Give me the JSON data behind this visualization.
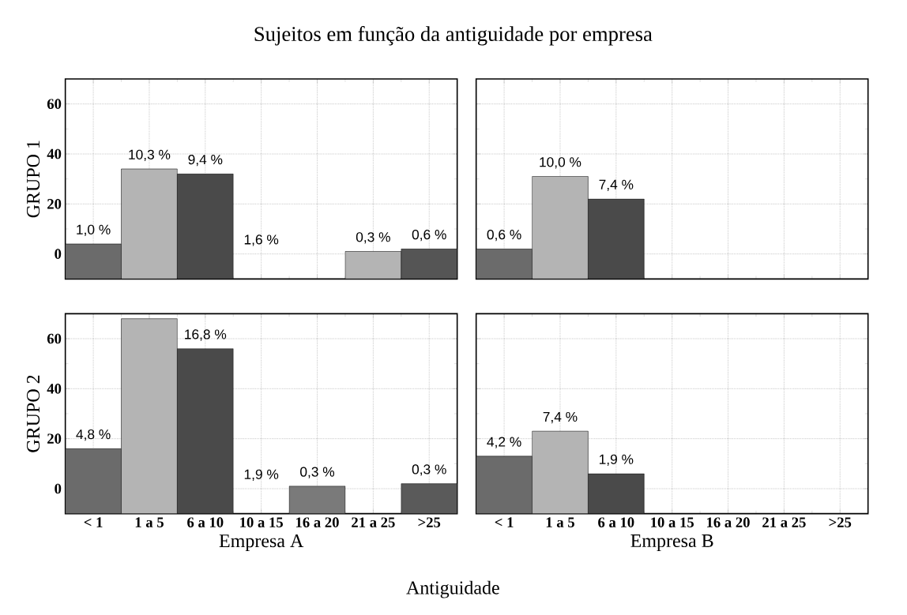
{
  "chart_data": [
    {
      "type": "bar",
      "title": "Sujeitos em função da antiguidade por empresa",
      "ylabel": "GRUPO 1",
      "categories": [
        "< 1",
        "1 a 5",
        "6 a 10",
        "10 a 15",
        "16 a 20",
        "21 a 25",
        ">25"
      ],
      "values": [
        14,
        44,
        42,
        null,
        null,
        11,
        12
      ],
      "base": [
        -10,
        -10,
        -10,
        null,
        null,
        -10,
        -10
      ],
      "colors": [
        "#6b6b6b",
        "#b4b4b4",
        "#4a4a4a",
        "#6b6b6b",
        "#7a7a7a",
        "#b4b4b4",
        "#555555"
      ],
      "ylim": [
        -10,
        70
      ],
      "yticks": [
        0,
        20,
        40,
        60
      ],
      "grid": true,
      "tick_labels": "y",
      "annotations": [
        {
          "text": "1,0 %",
          "x": "< 1",
          "y": 4
        },
        {
          "text": "10,3 %",
          "x": "1 a 5",
          "y": 34
        },
        {
          "text": "9,4 %",
          "x": "6 a 10",
          "y": 32
        },
        "1,6 %",
        {
          "text": "0,3 %",
          "x": "21 a 25",
          "y": 1
        },
        {
          "text": "0,6 %",
          "x": ">25",
          "y": 2
        }
      ]
    },
    {
      "type": "bar",
      "categories": [
        "< 1",
        "1 a 5",
        "6 a 10",
        "10 a 15",
        "16 a 20",
        "21 a 25",
        ">25"
      ],
      "values": [
        12,
        41,
        32,
        null,
        null,
        null,
        null
      ],
      "base": [
        -10,
        -10,
        -10,
        null,
        null,
        null,
        null
      ],
      "colors": [
        "#6b6b6b",
        "#b4b4b4",
        "#4a4a4a",
        "#6b6b6b",
        "#7a7a7a",
        "#b4b4b4",
        "#555555"
      ],
      "ylim": [
        -10,
        70
      ],
      "yticks": [
        0,
        20,
        40,
        60
      ],
      "grid": true,
      "tick_labels": false,
      "annotations": [
        {
          "text": "0,6 %",
          "x": "< 1",
          "y": 2
        },
        {
          "text": "10,0 %",
          "x": "1 a 5",
          "y": 31
        },
        {
          "text": "7,4 %",
          "x": "6 a 10",
          "y": 22
        }
      ]
    },
    {
      "type": "bar",
      "ylabel": "GRUPO 2",
      "xlabel": "Empresa A",
      "categories": [
        "< 1",
        "1 a 5",
        "6 a 10",
        "10 a 15",
        "16 a 20",
        "21 a 25",
        ">25"
      ],
      "values": [
        26,
        78,
        66,
        null,
        11,
        null,
        12
      ],
      "base": [
        -10,
        -10,
        -10,
        null,
        -10,
        null,
        -10
      ],
      "colors": [
        "#6b6b6b",
        "#b4b4b4",
        "#4a4a4a",
        "#6b6b6b",
        "#7a7a7a",
        "#b4b4b4",
        "#5a5a5a"
      ],
      "ylim": [
        -10,
        70
      ],
      "yticks": [
        0,
        20,
        40,
        60
      ],
      "grid": true,
      "annotations": [
        "Antiguidade",
        {
          "text": "4,8 %",
          "x": "< 1",
          "y": 16
        },
        {
          "text": "16,8 %",
          "x": "6 a 10",
          "y": 56
        },
        "1,9 %",
        {
          "text": "0,3 %",
          "x": "16 a 20",
          "y": 1
        },
        {
          "text": "0,3 %",
          "x": ">25",
          "y": 2
        }
      ]
    },
    {
      "type": "bar",
      "xlabel": "Empresa B",
      "categories": [
        "< 1",
        "1 a 5",
        "6 a 10",
        "10 a 15",
        "16 a 20",
        "21 a 25",
        ">25"
      ],
      "values": [
        23,
        33,
        16,
        null,
        null,
        null,
        null
      ],
      "base": [
        -10,
        -10,
        -10,
        null,
        null,
        null,
        null
      ],
      "colors": [
        "#6b6b6b",
        "#b4b4b4",
        "#4a4a4a",
        "#6b6b6b",
        "#7a7a7a",
        "#b4b4b4",
        "#555555"
      ],
      "ylim": [
        -10,
        70
      ],
      "yticks": [
        0,
        20,
        40,
        60
      ],
      "grid": true,
      "tick_labels": "x",
      "annotations": [
        {
          "text": "4,2 %",
          "x": "< 1",
          "y": 13
        },
        {
          "text": "7,4 %",
          "x": "1 a 5",
          "y": 23
        },
        {
          "text": "1,9 %",
          "x": "6 a 10",
          "y": 6
        }
      ]
    }
  ]
}
